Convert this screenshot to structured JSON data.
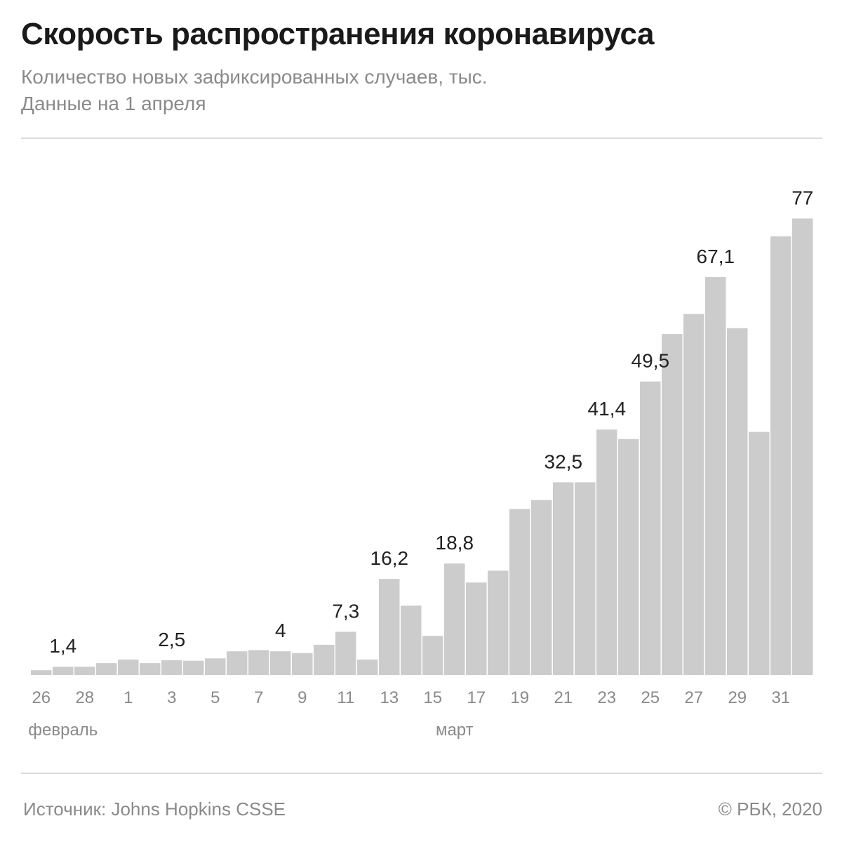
{
  "header": {
    "title": "Скорость распространения коронавируса",
    "subtitle": "Количество новых зафиксированных случаев, тыс.",
    "date_note": "Данные на 1 апреля"
  },
  "footer": {
    "source": "Источник: Johns Hopkins CSSE",
    "copyright": "© РБК, 2020"
  },
  "colors": {
    "bar": "#cccccc",
    "muted_text": "#8a8a8a",
    "label_text": "#222222"
  },
  "chart_data": {
    "type": "bar",
    "title": "Скорость распространения коронавируса",
    "ylabel": "Количество новых зафиксированных случаев, тыс.",
    "ylim": [
      0,
      80
    ],
    "categories": [
      "26",
      "27",
      "28",
      "29",
      "1",
      "2",
      "3",
      "4",
      "5",
      "6",
      "7",
      "8",
      "9",
      "10",
      "11",
      "12",
      "13",
      "14",
      "15",
      "16",
      "17",
      "18",
      "19",
      "20",
      "21",
      "22",
      "23",
      "24",
      "25",
      "26",
      "27",
      "28",
      "29",
      "30",
      "31",
      "1"
    ],
    "values": [
      0.8,
      1.4,
      1.4,
      2.0,
      2.6,
      2.0,
      2.5,
      2.4,
      2.8,
      4.0,
      4.2,
      4.0,
      3.7,
      5.1,
      7.3,
      2.6,
      16.2,
      11.7,
      6.6,
      18.8,
      15.6,
      17.6,
      28.0,
      29.5,
      32.5,
      32.5,
      41.4,
      39.8,
      49.5,
      57.5,
      60.9,
      67.1,
      58.5,
      41.0,
      74.0,
      77.0
    ],
    "tick_labels": [
      {
        "index": 0,
        "text": "26"
      },
      {
        "index": 2,
        "text": "28"
      },
      {
        "index": 4,
        "text": "1"
      },
      {
        "index": 6,
        "text": "3"
      },
      {
        "index": 8,
        "text": "5"
      },
      {
        "index": 10,
        "text": "7"
      },
      {
        "index": 12,
        "text": "9"
      },
      {
        "index": 14,
        "text": "11"
      },
      {
        "index": 16,
        "text": "13"
      },
      {
        "index": 18,
        "text": "15"
      },
      {
        "index": 20,
        "text": "17"
      },
      {
        "index": 22,
        "text": "19"
      },
      {
        "index": 24,
        "text": "21"
      },
      {
        "index": 26,
        "text": "23"
      },
      {
        "index": 28,
        "text": "25"
      },
      {
        "index": 30,
        "text": "27"
      },
      {
        "index": 32,
        "text": "29"
      },
      {
        "index": 34,
        "text": "31"
      }
    ],
    "annotations": [
      {
        "index": 1,
        "text": "1,4"
      },
      {
        "index": 6,
        "text": "2,5"
      },
      {
        "index": 11,
        "text": "4"
      },
      {
        "index": 14,
        "text": "7,3"
      },
      {
        "index": 16,
        "text": "16,2"
      },
      {
        "index": 19,
        "text": "18,8"
      },
      {
        "index": 24,
        "text": "32,5"
      },
      {
        "index": 26,
        "text": "41,4"
      },
      {
        "index": 28,
        "text": "49,5"
      },
      {
        "index": 31,
        "text": "67,1"
      },
      {
        "index": 35,
        "text": "77"
      }
    ],
    "months": [
      {
        "index": 1,
        "text": "февраль"
      },
      {
        "index": 19,
        "text": "март"
      }
    ]
  }
}
